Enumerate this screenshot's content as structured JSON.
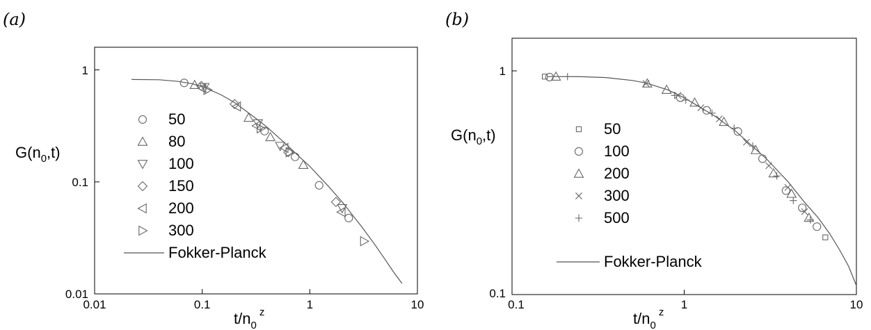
{
  "chart_data": [
    {
      "panel": "(a)",
      "type": "scatter",
      "xscale": "log",
      "yscale": "log",
      "xlim": [
        0.01,
        10
      ],
      "ylim": [
        0.01,
        2
      ],
      "xticks": [
        0.01,
        0.1,
        1,
        10
      ],
      "xtick_labels": [
        "0.01",
        "0.1",
        "1",
        "10"
      ],
      "yticks": [
        0.01,
        0.1,
        1
      ],
      "ytick_labels": [
        "0.01",
        "0.1",
        "1"
      ],
      "xlabel": {
        "base": "t/n",
        "sub": "0",
        "sup": "z"
      },
      "ylabel": {
        "text": "G(n",
        "sub": "0",
        "tail": ",t)"
      },
      "legend": "upper-left",
      "series": [
        {
          "name": "50",
          "marker": "circle",
          "x": [
            0.068,
            0.38,
            0.73,
            1.22,
            2.3
          ],
          "y": [
            0.93,
            0.33,
            0.19,
            0.103,
            0.051
          ]
        },
        {
          "name": "80",
          "marker": "triangle-up",
          "x": [
            0.085,
            0.27,
            0.43,
            0.87
          ],
          "y": [
            0.89,
            0.44,
            0.29,
            0.16
          ]
        },
        {
          "name": "100",
          "marker": "triangle-down",
          "x": [
            0.105,
            0.33,
            0.53,
            2.0
          ],
          "y": [
            0.85,
            0.39,
            0.24,
            0.063
          ]
        },
        {
          "name": "150",
          "marker": "diamond",
          "x": [
            0.098,
            0.2,
            0.63,
            1.75
          ],
          "y": [
            0.87,
            0.59,
            0.21,
            0.072
          ]
        },
        {
          "name": "200",
          "marker": "triangle-left",
          "x": [
            0.1,
            0.21,
            0.32,
            0.58,
            1.97
          ],
          "y": [
            0.83,
            0.56,
            0.37,
            0.23,
            0.058
          ]
        },
        {
          "name": "300",
          "marker": "triangle-right",
          "x": [
            0.112,
            0.35,
            0.65,
            3.2
          ],
          "y": [
            0.8,
            0.35,
            0.21,
            0.031
          ]
        }
      ],
      "curve": {
        "name": "Fokker-Planck",
        "x": [
          0.022,
          0.04,
          0.06,
          0.08,
          0.1,
          0.15,
          0.2,
          0.3,
          0.4,
          0.6,
          0.8,
          1,
          1.5,
          2,
          3,
          4,
          5,
          6,
          7.2
        ],
        "y": [
          1.0,
          0.995,
          0.96,
          0.915,
          0.86,
          0.72,
          0.61,
          0.45,
          0.36,
          0.25,
          0.19,
          0.155,
          0.1,
          0.072,
          0.043,
          0.029,
          0.021,
          0.016,
          0.0125
        ]
      }
    },
    {
      "panel": "(b)",
      "type": "scatter",
      "xscale": "log",
      "yscale": "log",
      "xlim": [
        0.1,
        10
      ],
      "ylim": [
        0.1,
        1.5
      ],
      "xticks": [
        0.1,
        1,
        10
      ],
      "xtick_labels": [
        "0.1",
        "1",
        "10"
      ],
      "yticks": [
        0.1,
        1
      ],
      "ytick_labels": [
        "0.1",
        "1"
      ],
      "xlabel": {
        "base": "t/n",
        "sub": "0",
        "sup": "z"
      },
      "ylabel": {
        "text": "G(n",
        "sub": "0",
        "tail": ",t)"
      },
      "legend": "left",
      "series": [
        {
          "name": "50",
          "marker": "square",
          "x": [
            0.155,
            6.6
          ],
          "y": [
            1.0,
            0.183
          ]
        },
        {
          "name": "100",
          "marker": "circle",
          "x": [
            0.165,
            0.95,
            1.35,
            2.05,
            2.85,
            3.9,
            4.85,
            5.9
          ],
          "y": [
            0.995,
            0.8,
            0.7,
            0.56,
            0.42,
            0.3,
            0.25,
            0.205
          ]
        },
        {
          "name": "200",
          "marker": "triangle-up",
          "x": [
            0.18,
            0.61,
            0.79,
            1.15,
            1.7,
            2.6,
            3.3,
            4.2,
            5.3
          ],
          "y": [
            1.0,
            0.93,
            0.87,
            0.76,
            0.62,
            0.46,
            0.36,
            0.29,
            0.225
          ]
        },
        {
          "name": "300",
          "marker": "x",
          "x": [
            0.6,
            0.92,
            1.25,
            1.6,
            2.3,
            3.1,
            4.0,
            5.0
          ],
          "y": [
            0.93,
            0.82,
            0.72,
            0.64,
            0.5,
            0.39,
            0.31,
            0.24
          ]
        },
        {
          "name": "500",
          "marker": "plus",
          "x": [
            0.21,
            0.88,
            1.02,
            1.45,
            1.95,
            2.5,
            3.45,
            4.3,
            5.4
          ],
          "y": [
            1.0,
            0.82,
            0.78,
            0.68,
            0.58,
            0.48,
            0.35,
            0.27,
            0.22
          ]
        }
      ],
      "curve": {
        "name": "Fokker-Planck",
        "x": [
          0.16,
          0.25,
          0.35,
          0.5,
          0.6,
          0.8,
          1,
          1.5,
          2,
          3,
          4,
          5,
          6,
          7,
          8,
          9,
          10
        ],
        "y": [
          1.0,
          0.999,
          0.99,
          0.96,
          0.935,
          0.87,
          0.8,
          0.66,
          0.56,
          0.42,
          0.33,
          0.265,
          0.225,
          0.19,
          0.16,
          0.135,
          0.11
        ]
      }
    }
  ]
}
